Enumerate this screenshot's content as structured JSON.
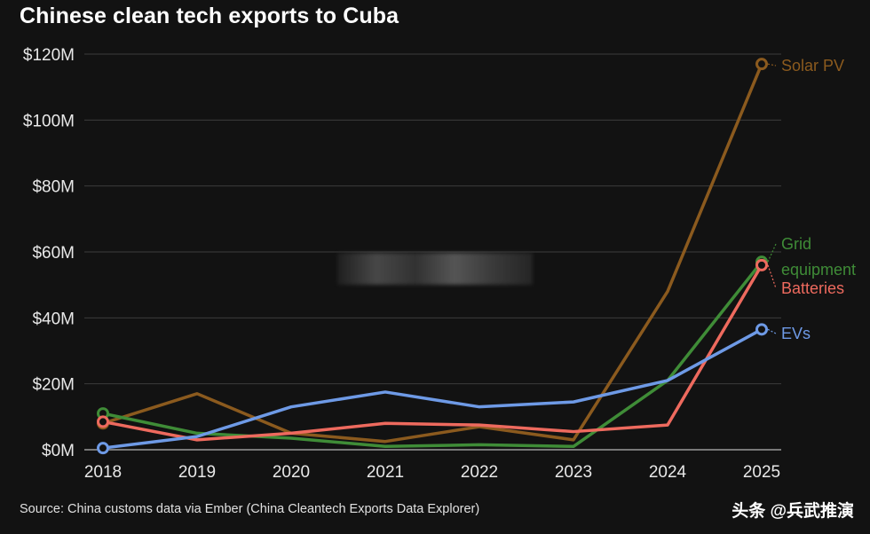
{
  "header": {
    "title": "Chinese clean tech exports to Cuba"
  },
  "footer": {
    "source": "Source: China customs data via Ember (China Cleantech Exports Data Explorer)",
    "watermark": "头条 @兵武推演"
  },
  "chart_data": {
    "type": "line",
    "title": "Chinese clean tech exports to Cuba",
    "xlabel": "",
    "ylabel": "",
    "x": [
      "2018",
      "2019",
      "2020",
      "2021",
      "2022",
      "2023",
      "2024",
      "2025"
    ],
    "ylim": [
      0,
      120
    ],
    "yticks": [
      0,
      20,
      40,
      60,
      80,
      100,
      120
    ],
    "ytick_labels": [
      "$0M",
      "$20M",
      "$40M",
      "$60M",
      "$80M",
      "$100M",
      "$120M"
    ],
    "grid": true,
    "series": [
      {
        "name": "Solar PV",
        "label_lines": [
          "Solar PV"
        ],
        "color": "#8b5a1e",
        "values": [
          8,
          17,
          5,
          2.5,
          7,
          3,
          48,
          117
        ]
      },
      {
        "name": "Grid equipment",
        "label_lines": [
          "Grid",
          "equipment"
        ],
        "color": "#3f8c37",
        "values": [
          11,
          5,
          3.5,
          1,
          1.5,
          1,
          21,
          57
        ]
      },
      {
        "name": "Batteries",
        "label_lines": [
          "Batteries"
        ],
        "color": "#ee6a5e",
        "values": [
          8.5,
          3,
          5,
          8,
          7.5,
          5.5,
          7.5,
          56
        ]
      },
      {
        "name": "EVs",
        "label_lines": [
          "EVs"
        ],
        "color": "#6e9ae6",
        "values": [
          0.5,
          4,
          13,
          17.5,
          13,
          14.5,
          21,
          36.5
        ]
      }
    ]
  }
}
